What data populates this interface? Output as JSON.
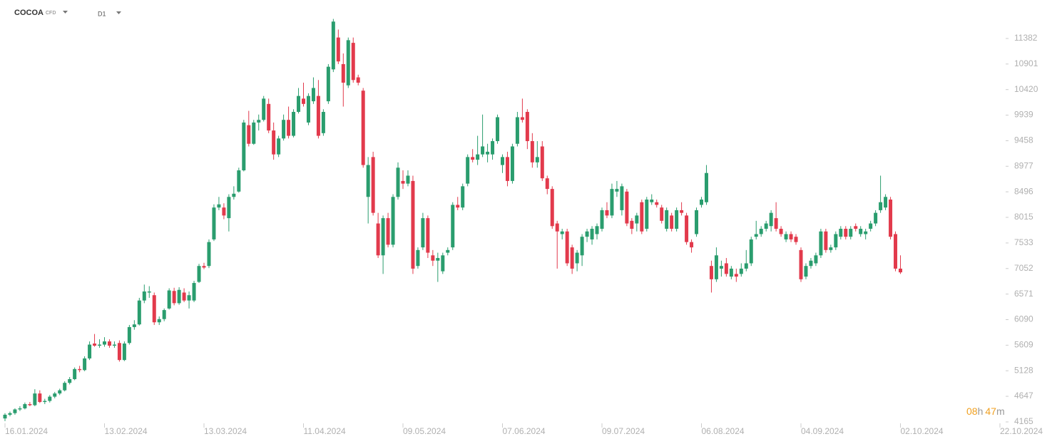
{
  "header": {
    "symbol": "COCOA",
    "instrument": "CFD",
    "interval": "D1"
  },
  "timer": {
    "hours": "08",
    "hours_unit": "h",
    "minutes": "47",
    "minutes_unit": "m"
  },
  "chart_data": {
    "type": "candlestick",
    "up_color": "#2a9d6e",
    "down_color": "#e23a4c",
    "ylim": [
      4165,
      11972
    ],
    "yticks": [
      11382,
      10901,
      10420,
      9939,
      9458,
      8977,
      8496,
      8015,
      7533,
      7052,
      6571,
      6090,
      5609,
      5128,
      4647,
      4165
    ],
    "xlim": [
      0,
      200
    ],
    "xticks": [
      {
        "value": 0,
        "label": "16.01.2024"
      },
      {
        "value": 20,
        "label": "13.02.2024"
      },
      {
        "value": 40,
        "label": "13.03.2024"
      },
      {
        "value": 60,
        "label": "11.04.2024"
      },
      {
        "value": 80,
        "label": "09.05.2024"
      },
      {
        "value": 100,
        "label": "07.06.2024"
      },
      {
        "value": 120,
        "label": "09.07.2024"
      },
      {
        "value": 140,
        "label": "06.08.2024"
      },
      {
        "value": 160,
        "label": "04.09.2024"
      },
      {
        "value": 180,
        "label": "02.10.2024"
      },
      {
        "value": 200,
        "label": "22.10.2024"
      }
    ],
    "ohlc": [
      [
        4230,
        4330,
        4180,
        4300
      ],
      [
        4300,
        4360,
        4270,
        4330
      ],
      [
        4330,
        4420,
        4300,
        4400
      ],
      [
        4400,
        4460,
        4370,
        4420
      ],
      [
        4420,
        4530,
        4400,
        4500
      ],
      [
        4500,
        4540,
        4460,
        4480
      ],
      [
        4480,
        4780,
        4460,
        4700
      ],
      [
        4700,
        4760,
        4520,
        4540
      ],
      [
        4540,
        4600,
        4500,
        4560
      ],
      [
        4560,
        4670,
        4530,
        4640
      ],
      [
        4640,
        4730,
        4610,
        4700
      ],
      [
        4700,
        4790,
        4670,
        4760
      ],
      [
        4760,
        4930,
        4740,
        4900
      ],
      [
        4900,
        5010,
        4870,
        4970
      ],
      [
        4970,
        5190,
        4950,
        5160
      ],
      [
        5160,
        5220,
        5100,
        5140
      ],
      [
        5140,
        5400,
        5120,
        5360
      ],
      [
        5360,
        5680,
        5330,
        5620
      ],
      [
        5640,
        5820,
        5580,
        5600
      ],
      [
        5600,
        5720,
        5560,
        5620
      ],
      [
        5620,
        5760,
        5580,
        5680
      ],
      [
        5680,
        5720,
        5560,
        5600
      ],
      [
        5600,
        5680,
        5560,
        5620
      ],
      [
        5650,
        5700,
        5300,
        5330
      ],
      [
        5330,
        5680,
        5310,
        5640
      ],
      [
        5650,
        5990,
        5620,
        5950
      ],
      [
        5950,
        6080,
        5900,
        6000
      ],
      [
        6000,
        6500,
        5980,
        6450
      ],
      [
        6450,
        6750,
        6400,
        6620
      ],
      [
        6600,
        6720,
        6500,
        6620
      ],
      [
        6550,
        6600,
        5990,
        6040
      ],
      [
        6040,
        6150,
        5990,
        6100
      ],
      [
        6100,
        6300,
        6060,
        6270
      ],
      [
        6300,
        6680,
        6280,
        6640
      ],
      [
        6630,
        6690,
        6360,
        6400
      ],
      [
        6400,
        6700,
        6370,
        6650
      ],
      [
        6600,
        6680,
        6420,
        6450
      ],
      [
        6450,
        6620,
        6300,
        6550
      ],
      [
        6450,
        6820,
        6420,
        6780
      ],
      [
        6800,
        7140,
        6780,
        7100
      ],
      [
        7100,
        7160,
        7040,
        7070
      ],
      [
        7100,
        7600,
        7060,
        7550
      ],
      [
        7600,
        8260,
        7570,
        8200
      ],
      [
        8200,
        8400,
        8150,
        8260
      ],
      [
        8200,
        8280,
        7980,
        8050
      ],
      [
        8000,
        8450,
        7750,
        8400
      ],
      [
        8400,
        8600,
        8350,
        8460
      ],
      [
        8500,
        8950,
        8480,
        8900
      ],
      [
        8900,
        9850,
        8880,
        9800
      ],
      [
        9750,
        10020,
        9350,
        9400
      ],
      [
        9400,
        9850,
        9380,
        9800
      ],
      [
        9800,
        9950,
        9650,
        9850
      ],
      [
        9850,
        10300,
        9820,
        10250
      ],
      [
        10150,
        10250,
        9600,
        9650
      ],
      [
        9650,
        9800,
        9100,
        9200
      ],
      [
        9200,
        9550,
        9150,
        9500
      ],
      [
        9500,
        9950,
        9460,
        9850
      ],
      [
        9850,
        10100,
        9500,
        9550
      ],
      [
        9550,
        10050,
        9520,
        10000
      ],
      [
        10000,
        10450,
        9970,
        10300
      ],
      [
        10250,
        10550,
        10100,
        10150
      ],
      [
        9800,
        10350,
        9750,
        10300
      ],
      [
        10200,
        10650,
        10150,
        10450
      ],
      [
        10300,
        10600,
        9500,
        9550
      ],
      [
        9600,
        10050,
        9550,
        10000
      ],
      [
        10200,
        10900,
        10150,
        10850
      ],
      [
        10800,
        11750,
        10750,
        11700
      ],
      [
        11400,
        11550,
        10900,
        10950
      ],
      [
        10900,
        11100,
        10100,
        10550
      ],
      [
        10500,
        11400,
        10450,
        11350
      ],
      [
        11300,
        11400,
        10550,
        10600
      ],
      [
        10650,
        10700,
        10500,
        10550
      ],
      [
        10400,
        10450,
        8950,
        9000
      ],
      [
        8400,
        9150,
        7900,
        9000
      ],
      [
        9150,
        9250,
        8050,
        8100
      ],
      [
        7900,
        8100,
        7250,
        7300
      ],
      [
        7300,
        8050,
        6950,
        8000
      ],
      [
        8000,
        8100,
        7450,
        7500
      ],
      [
        7500,
        8450,
        7450,
        8400
      ],
      [
        8400,
        9050,
        8350,
        8950
      ],
      [
        8700,
        8900,
        8550,
        8650
      ],
      [
        8650,
        8900,
        8600,
        8800
      ],
      [
        8700,
        8800,
        6950,
        7050
      ],
      [
        7100,
        7450,
        7050,
        7400
      ],
      [
        7450,
        8100,
        7400,
        8000
      ],
      [
        8000,
        8050,
        7250,
        7350
      ],
      [
        7300,
        7400,
        7100,
        7200
      ],
      [
        7200,
        7350,
        6800,
        7250
      ],
      [
        7000,
        7350,
        6950,
        7300
      ],
      [
        7350,
        7450,
        7300,
        7400
      ],
      [
        7450,
        8300,
        7400,
        8250
      ],
      [
        8250,
        8400,
        8150,
        8200
      ],
      [
        8200,
        8650,
        8150,
        8600
      ],
      [
        8650,
        9200,
        8600,
        9150
      ],
      [
        9150,
        9300,
        9050,
        9100
      ],
      [
        9100,
        9550,
        9000,
        9200
      ],
      [
        9200,
        9950,
        9150,
        9350
      ],
      [
        9200,
        9400,
        9050,
        9250
      ],
      [
        9200,
        9500,
        9100,
        9450
      ],
      [
        9450,
        9950,
        9400,
        9900
      ],
      [
        9000,
        9200,
        8850,
        9150
      ],
      [
        9150,
        9250,
        8600,
        8700
      ],
      [
        8700,
        9400,
        8650,
        9350
      ],
      [
        9400,
        10000,
        9350,
        9900
      ],
      [
        9900,
        10250,
        9800,
        9850
      ],
      [
        10000,
        10050,
        9300,
        9450
      ],
      [
        9450,
        9600,
        8950,
        9050
      ],
      [
        9050,
        9450,
        8950,
        9150
      ],
      [
        9350,
        9450,
        8700,
        8750
      ],
      [
        8750,
        8800,
        8450,
        8550
      ],
      [
        8550,
        8600,
        7800,
        7850
      ],
      [
        7900,
        7950,
        7050,
        7750
      ],
      [
        7700,
        7800,
        7600,
        7750
      ],
      [
        7750,
        7800,
        7100,
        7150
      ],
      [
        7450,
        7500,
        6950,
        7050
      ],
      [
        7150,
        7400,
        7000,
        7350
      ],
      [
        7300,
        7700,
        7100,
        7650
      ],
      [
        7650,
        7800,
        7550,
        7750
      ],
      [
        7600,
        7850,
        7500,
        7800
      ],
      [
        7700,
        7900,
        7600,
        7850
      ],
      [
        7800,
        8200,
        7750,
        8150
      ],
      [
        8150,
        8300,
        8000,
        8050
      ],
      [
        8050,
        8650,
        8000,
        8550
      ],
      [
        8500,
        8700,
        8400,
        8550
      ],
      [
        8150,
        8650,
        8050,
        8600
      ],
      [
        8500,
        8550,
        7850,
        7900
      ],
      [
        7950,
        8000,
        7700,
        7800
      ],
      [
        7900,
        8100,
        7750,
        8050
      ],
      [
        8300,
        8350,
        7700,
        7750
      ],
      [
        7800,
        8400,
        7750,
        8350
      ],
      [
        8300,
        8450,
        8250,
        8350
      ],
      [
        8300,
        8350,
        8200,
        8250
      ],
      [
        8200,
        8250,
        7900,
        7950
      ],
      [
        7800,
        8200,
        7750,
        8150
      ],
      [
        8050,
        8100,
        7750,
        7800
      ],
      [
        7800,
        8200,
        7750,
        8150
      ],
      [
        8150,
        8300,
        8050,
        8100
      ],
      [
        8050,
        8100,
        7500,
        7550
      ],
      [
        7550,
        7600,
        7350,
        7450
      ],
      [
        7700,
        8200,
        7650,
        8150
      ],
      [
        8250,
        8400,
        8200,
        8350
      ],
      [
        8300,
        9000,
        8250,
        8850
      ],
      [
        7100,
        7200,
        6600,
        6850
      ],
      [
        6850,
        7450,
        6800,
        7300
      ],
      [
        7050,
        7200,
        6900,
        7100
      ],
      [
        7150,
        7250,
        6900,
        6950
      ],
      [
        6900,
        7100,
        6850,
        7050
      ],
      [
        6950,
        7050,
        6800,
        6900
      ],
      [
        6950,
        7150,
        6900,
        7050
      ],
      [
        7050,
        7400,
        7000,
        7150
      ],
      [
        7150,
        7650,
        7100,
        7600
      ],
      [
        7650,
        7950,
        7600,
        7700
      ],
      [
        7700,
        7850,
        7650,
        7800
      ],
      [
        7800,
        7950,
        7750,
        7900
      ],
      [
        7850,
        8150,
        7750,
        8100
      ],
      [
        8000,
        8300,
        7750,
        7800
      ],
      [
        7800,
        7850,
        7650,
        7700
      ],
      [
        7600,
        7750,
        7550,
        7700
      ],
      [
        7700,
        7750,
        7550,
        7600
      ],
      [
        7650,
        7700,
        7500,
        7550
      ],
      [
        7400,
        7450,
        6800,
        6850
      ],
      [
        6900,
        7150,
        6850,
        7100
      ],
      [
        7100,
        7250,
        7050,
        7200
      ],
      [
        7150,
        7350,
        7100,
        7300
      ],
      [
        7300,
        7800,
        7250,
        7750
      ],
      [
        7750,
        7800,
        7350,
        7400
      ],
      [
        7400,
        7500,
        7350,
        7450
      ],
      [
        7450,
        7750,
        7400,
        7700
      ],
      [
        7650,
        7850,
        7600,
        7800
      ],
      [
        7800,
        7850,
        7600,
        7650
      ],
      [
        7650,
        7850,
        7600,
        7800
      ],
      [
        7850,
        7900,
        7750,
        7800
      ],
      [
        7700,
        7850,
        7650,
        7800
      ],
      [
        7700,
        7800,
        7600,
        7750
      ],
      [
        7800,
        7950,
        7750,
        7900
      ],
      [
        7900,
        8150,
        7850,
        8100
      ],
      [
        8150,
        8800,
        8100,
        8300
      ],
      [
        8200,
        8450,
        8150,
        8400
      ],
      [
        8350,
        8400,
        7600,
        7650
      ],
      [
        7700,
        7750,
        7000,
        7050
      ],
      [
        7050,
        7300,
        6950,
        6980
      ]
    ]
  }
}
